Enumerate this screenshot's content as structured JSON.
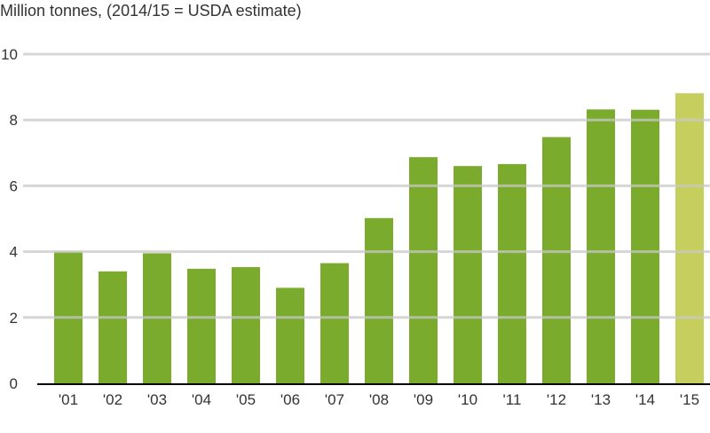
{
  "chart_data": {
    "type": "bar",
    "title": "Million tonnes, (2014/15 = USDA estimate)",
    "categories": [
      "'01",
      "'02",
      "'03",
      "'04",
      "'05",
      "'06",
      "'07",
      "'08",
      "'09",
      "'10",
      "'11",
      "'12",
      "'13",
      "'14",
      "'15"
    ],
    "values": [
      4.0,
      3.4,
      3.95,
      3.48,
      3.53,
      2.9,
      3.65,
      5.02,
      6.87,
      6.6,
      6.66,
      7.48,
      8.32,
      8.31,
      8.81
    ],
    "estimate_index": [
      14
    ],
    "ylim": [
      0,
      10
    ],
    "yticks": [
      0,
      2,
      4,
      6,
      8,
      10
    ],
    "grid": true,
    "colors": {
      "bar": "#7aab2d",
      "estimate": "#c6cf5d",
      "grid": "#c8c8c8",
      "axis": "#000000"
    }
  }
}
